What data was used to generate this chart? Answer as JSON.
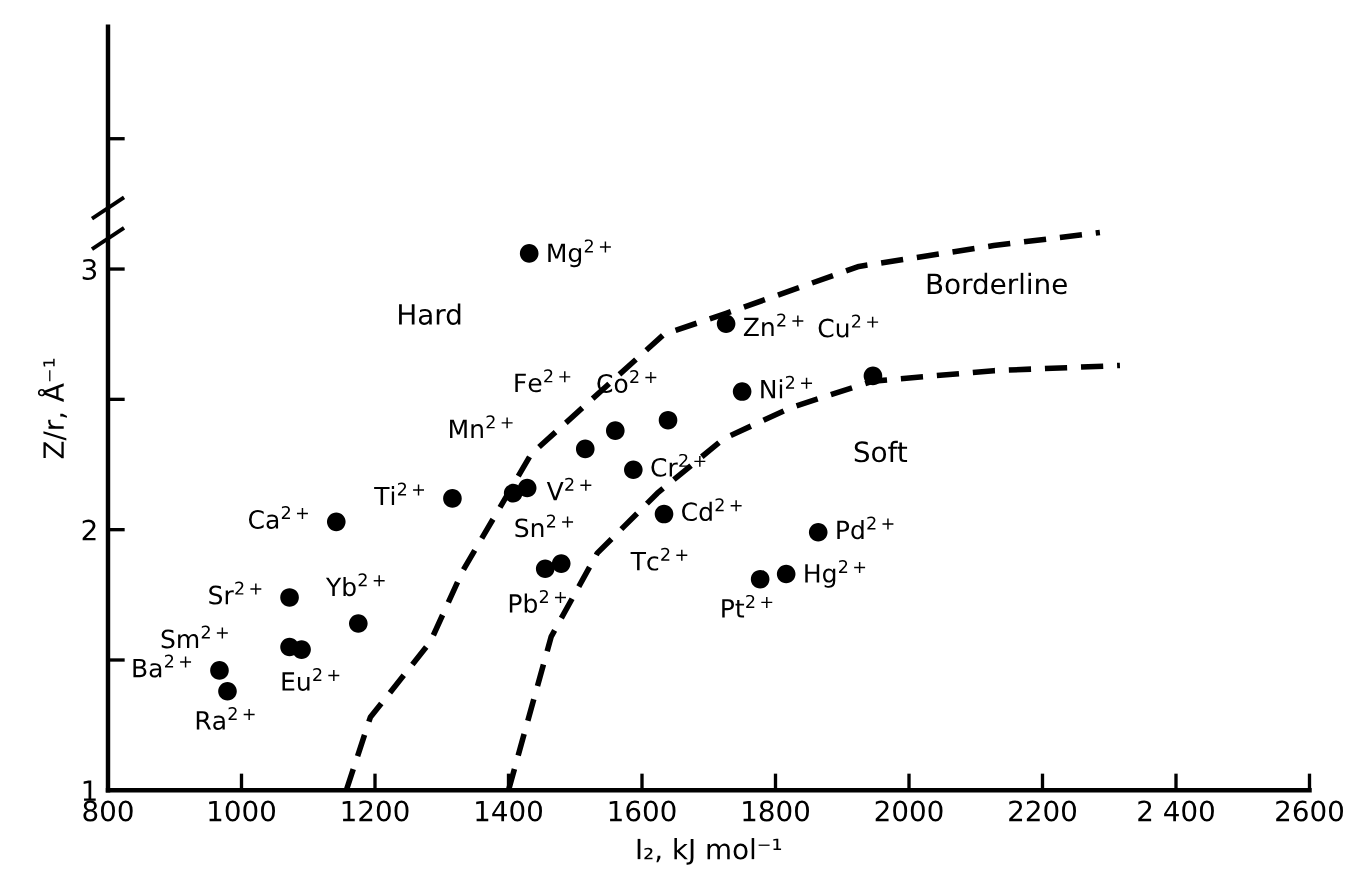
{
  "chart_data": {
    "type": "scatter",
    "xlabel": "I₂, kJ mol⁻¹",
    "ylabel": "Z/r, Å⁻¹",
    "xlim": [
      800,
      2600
    ],
    "xticks": [
      800,
      1000,
      1200,
      1400,
      1600,
      1800,
      2000,
      2200,
      {
        "value": 2400,
        "label": "2 400"
      },
      2600
    ],
    "ylim": [
      1,
      3.93
    ],
    "yticks": [
      1,
      {
        "value": 1.5,
        "label": null
      },
      2,
      {
        "value": 2.5,
        "label": null
      },
      3,
      {
        "value": 3.5,
        "label": null
      }
    ],
    "grid": false,
    "legend": false,
    "series": [
      {
        "color": "#000000",
        "marker": "circle",
        "x": [
          1431,
          1726,
          1946,
          1750,
          1639,
          1560,
          1515,
          1587,
          1428,
          1407,
          1316,
          1142,
          1633,
          1864,
          1816,
          1777,
          1479,
          1455,
          1072,
          1175,
          1072,
          1090,
          967,
          979
        ],
        "values": [
          3.06,
          2.79,
          2.59,
          2.53,
          2.42,
          2.38,
          2.31,
          2.23,
          2.16,
          2.14,
          2.12,
          2.03,
          2.06,
          1.99,
          1.83,
          1.81,
          1.87,
          1.85,
          1.74,
          1.64,
          1.55,
          1.54,
          1.46,
          1.38
        ]
      },
      {
        "type": "line",
        "color": "#000000",
        "line_style": "dashed",
        "marker": "none",
        "x": [
          1157,
          1193,
          1283,
          1331,
          1434,
          1633,
          1726,
          1925,
          2127,
          2286
        ],
        "values": [
          1.0,
          1.28,
          1.57,
          1.84,
          2.29,
          2.75,
          2.83,
          3.01,
          3.09,
          3.14
        ]
      },
      {
        "type": "line",
        "color": "#000000",
        "line_style": "dashed",
        "marker": "none",
        "x": [
          1400,
          1464,
          1533,
          1623,
          1723,
          1825,
          1946,
          2127,
          2316
        ],
        "values": [
          1.0,
          1.59,
          1.91,
          2.14,
          2.35,
          2.47,
          2.57,
          2.61,
          2.63
        ]
      }
    ],
    "annotations": [
      {
        "text": "Mg$^{2+}$",
        "x": 1431,
        "y": 3.06
      },
      {
        "text": "Zn$^{2+}$",
        "x": 1726,
        "y": 2.79
      },
      {
        "text": "Cu$^{2+}$",
        "x": 1946,
        "y": 2.59
      },
      {
        "text": "Ni$^{2+}$",
        "x": 1750,
        "y": 2.53
      },
      {
        "text": "Co$^{2+}$",
        "x": 1639,
        "y": 2.42
      },
      {
        "text": "Fe$^{2+}$",
        "x": 1560,
        "y": 2.38
      },
      {
        "text": "Mn$^{2+}$",
        "x": 1515,
        "y": 2.31
      },
      {
        "text": "Cr$^{2+}$",
        "x": 1587,
        "y": 2.23
      },
      {
        "text": "V$^{2+}$",
        "x": 1428,
        "y": 2.16
      },
      {
        "text": "Sn$^{2+}$",
        "x": 1407,
        "y": 2.14
      },
      {
        "text": "Ti$^{2+}$",
        "x": 1316,
        "y": 2.12
      },
      {
        "text": "Ca$^{2+}$",
        "x": 1142,
        "y": 2.03
      },
      {
        "text": "Cd$^{2+}$",
        "x": 1633,
        "y": 2.06
      },
      {
        "text": "Pd$^{2+}$",
        "x": 1864,
        "y": 1.99
      },
      {
        "text": "Hg$^{2+}$",
        "x": 1816,
        "y": 1.83
      },
      {
        "text": "Pt$^{2+}$",
        "x": 1777,
        "y": 1.81
      },
      {
        "text": "Tc$^{2+}$",
        "x": 1479,
        "y": 1.87
      },
      {
        "text": "Pb$^{2+}$",
        "x": 1455,
        "y": 1.85
      },
      {
        "text": "Sr$^{2+}$",
        "x": 1072,
        "y": 1.74
      },
      {
        "text": "Yb$^{2+}$",
        "x": 1175,
        "y": 1.64
      },
      {
        "text": "Sm$^{2+}$",
        "x": 1072,
        "y": 1.55
      },
      {
        "text": "Eu$^{2+}$",
        "x": 1090,
        "y": 1.54
      },
      {
        "text": "Ba$^{2+}$",
        "x": 967,
        "y": 1.46
      },
      {
        "text": "Ra$^{2+}$",
        "x": 979,
        "y": 1.38
      },
      "Hard",
      "Borderline",
      "Soft"
    ]
  }
}
